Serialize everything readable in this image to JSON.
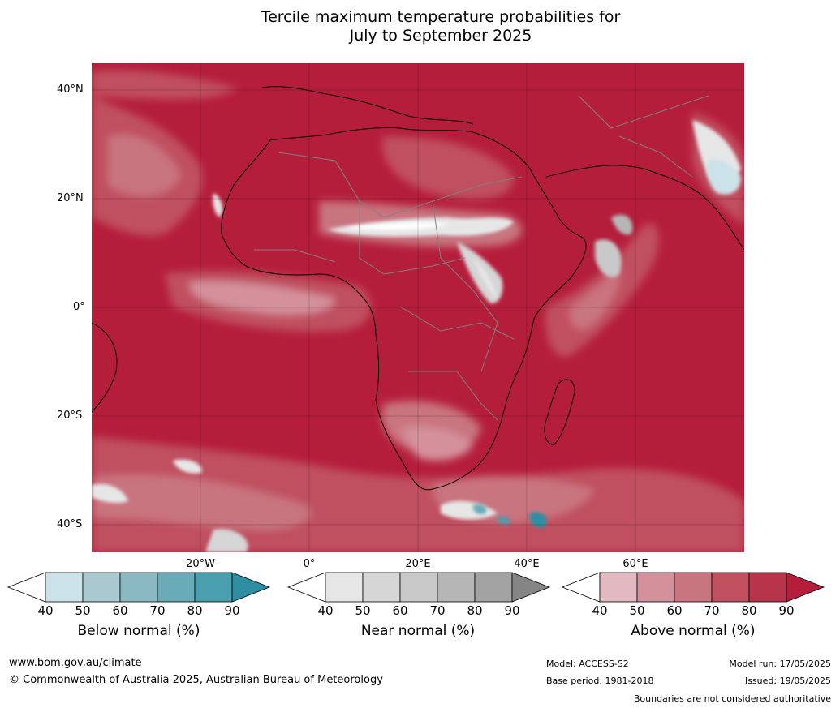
{
  "title_line1": "Tercile maximum temperature probabilities for",
  "title_line2": "July to September 2025",
  "lat_labels": [
    "40°N",
    "20°N",
    "0°",
    "20°S",
    "40°S"
  ],
  "lon_labels": [
    "20°W",
    "0°",
    "20°E",
    "40°E",
    "60°E"
  ],
  "colors": {
    "ocean_base": "#b51e3b",
    "above": [
      "#ffffff",
      "#e2b8c1",
      "#d4919c",
      "#c97580",
      "#c0505f",
      "#b8344b",
      "#b51e3b"
    ],
    "near": [
      "#ffffff",
      "#e6e6e6",
      "#d6d6d6",
      "#c8c8c8",
      "#b6b6b6",
      "#a3a3a3",
      "#858585"
    ],
    "below": [
      "#ffffff",
      "#cbe2e8",
      "#a9c8cf",
      "#8ab8c3",
      "#6aabb8",
      "#4a9faf",
      "#2d8ea3"
    ],
    "land_border": "#000000",
    "country_border": "#808080"
  },
  "colorbars": [
    {
      "name": "below",
      "label": "Below normal (%)",
      "ticks": [
        "40",
        "50",
        "60",
        "70",
        "80",
        "90"
      ]
    },
    {
      "name": "near",
      "label": "Near normal (%)",
      "ticks": [
        "40",
        "50",
        "60",
        "70",
        "80",
        "90"
      ]
    },
    {
      "name": "above",
      "label": "Above normal (%)",
      "ticks": [
        "40",
        "50",
        "60",
        "70",
        "80",
        "90"
      ]
    }
  ],
  "footer": {
    "website": "www.bom.gov.au/climate",
    "copyright": "© Commonwealth of Australia 2025, Australian Bureau of Meteorology",
    "model": "Model: ACCESS-S2",
    "base_period": "Base period: 1981-2018",
    "model_run": "Model run: 17/05/2025",
    "issued": "Issued: 19/05/2025",
    "disclaimer": "Boundaries are not considered authoritative"
  }
}
